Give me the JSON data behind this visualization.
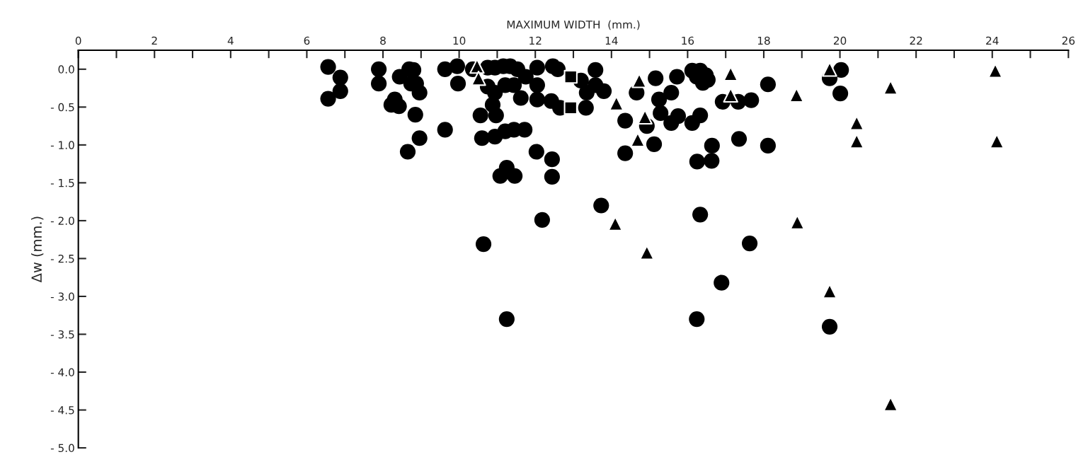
{
  "chart_data": {
    "type": "scatter",
    "xlabel": "MAXIMUM WIDTH  (mm.)",
    "ylabel": "Δw (mm.)",
    "xlim": [
      0,
      26
    ],
    "ylim": [
      -5.0,
      0.25
    ],
    "xticks": [
      0,
      {
        "value": 1,
        "label": null
      },
      2,
      {
        "value": 3,
        "label": null
      },
      4,
      {
        "value": 5,
        "label": null
      },
      6,
      {
        "value": 7,
        "label": null
      },
      8,
      {
        "value": 9,
        "label": null
      },
      10,
      {
        "value": 11,
        "label": null
      },
      12,
      {
        "value": 13,
        "label": null
      },
      14,
      {
        "value": 15,
        "label": null
      },
      16,
      {
        "value": 17,
        "label": null
      },
      18,
      {
        "value": 19,
        "label": null
      },
      20,
      {
        "value": 21,
        "label": null
      },
      22,
      {
        "value": 23,
        "label": null
      },
      24,
      {
        "value": 25,
        "label": null
      },
      26
    ],
    "yticks": [
      {
        "value": 0,
        "label": "0.0"
      },
      {
        "value": -0.5,
        "label": "- 0.5"
      },
      {
        "value": -1.0,
        "label": "- 1.0"
      },
      {
        "value": -1.5,
        "label": "- 1.5"
      },
      {
        "value": -2.0,
        "label": "- 2.0"
      },
      {
        "value": -2.5,
        "label": "- 2.5"
      },
      {
        "value": -3.0,
        "label": "- 3.0"
      },
      {
        "value": -3.5,
        "label": "- 3.5"
      },
      {
        "value": -4.0,
        "label": "- 4.0"
      },
      {
        "value": -4.5,
        "label": "- 4.5"
      },
      {
        "value": -5.0,
        "label": "- 5.0"
      }
    ],
    "grid": false,
    "series": [
      {
        "color": "#000000",
        "marker": "circle",
        "x": [
          6.56,
          6.88,
          6.88,
          6.56,
          7.89,
          7.89,
          8.44,
          8.69,
          8.8,
          8.74,
          8.87,
          8.96,
          8.31,
          8.22,
          8.42,
          8.85,
          8.96,
          8.65,
          9.63,
          9.95,
          9.97,
          9.63,
          10.36,
          10.75,
          10.94,
          11.16,
          11.34,
          11.53,
          11.75,
          10.75,
          10.94,
          11.21,
          11.44,
          10.88,
          10.97,
          10.56,
          10.6,
          10.94,
          11.21,
          11.44,
          11.72,
          11.62,
          12.05,
          12.46,
          12.59,
          12.05,
          12.05,
          12.42,
          12.65,
          13.33,
          13.58,
          13.2,
          13.58,
          13.35,
          13.8,
          12.03,
          12.44,
          11.25,
          11.08,
          11.46,
          12.44,
          14.36,
          14.36,
          15.16,
          15.72,
          14.66,
          15.25,
          15.57,
          14.93,
          15.29,
          15.57,
          15.12,
          16.12,
          16.33,
          16.48,
          16.24,
          16.4,
          16.53,
          18.11,
          16.92,
          17.33,
          17.67,
          20.03,
          19.73,
          20.01,
          15.75,
          16.33,
          16.12,
          17.35,
          18.11,
          16.64,
          16.25,
          16.63,
          13.73,
          12.18,
          10.64,
          11.25,
          16.33,
          16.24,
          17.63,
          16.89,
          19.73
        ],
        "values": [
          0.03,
          -0.11,
          -0.29,
          -0.39,
          0.0,
          -0.19,
          -0.1,
          0.0,
          -0.01,
          -0.19,
          -0.19,
          -0.31,
          -0.4,
          -0.47,
          -0.49,
          -0.6,
          -0.91,
          -1.09,
          0.0,
          0.04,
          -0.19,
          -0.8,
          0.0,
          0.02,
          0.02,
          0.04,
          0.04,
          0.0,
          -0.1,
          -0.23,
          -0.31,
          -0.21,
          -0.21,
          -0.47,
          -0.61,
          -0.61,
          -0.91,
          -0.89,
          -0.82,
          -0.8,
          -0.8,
          -0.38,
          0.02,
          0.04,
          0.0,
          -0.21,
          -0.4,
          -0.42,
          -0.51,
          -0.51,
          -0.01,
          -0.15,
          -0.21,
          -0.31,
          -0.29,
          -1.09,
          -1.19,
          -1.3,
          -1.41,
          -1.41,
          -1.42,
          -0.68,
          -1.11,
          -0.12,
          -0.1,
          -0.31,
          -0.4,
          -0.31,
          -0.75,
          -0.58,
          -0.71,
          -0.99,
          -0.02,
          -0.02,
          -0.08,
          -0.1,
          -0.18,
          -0.14,
          -0.2,
          -0.43,
          -0.43,
          -0.41,
          -0.01,
          -0.12,
          -0.32,
          -0.62,
          -0.61,
          -0.71,
          -0.92,
          -1.01,
          -1.01,
          -1.22,
          -1.21,
          -1.8,
          -1.99,
          -2.31,
          -3.3,
          -1.92,
          -3.3,
          -2.3,
          -2.82,
          -3.4
        ]
      },
      {
        "color": "#000000",
        "marker": "triangle",
        "x": [
          10.47,
          10.51,
          14.13,
          14.73,
          14.88,
          14.69,
          17.13,
          17.13,
          18.86,
          19.73,
          21.33,
          24.08,
          20.44,
          20.44,
          24.12,
          14.1,
          14.93,
          18.88,
          19.73,
          21.33
        ],
        "values": [
          0.04,
          -0.12,
          -0.45,
          -0.15,
          -0.63,
          -0.93,
          -0.06,
          -0.34,
          -0.34,
          0.0,
          -0.24,
          -0.02,
          -0.71,
          -0.95,
          -0.95,
          -2.04,
          -2.42,
          -2.02,
          -2.93,
          -4.42
        ]
      },
      {
        "color": "#000000",
        "marker": "square",
        "x": [
          12.93,
          12.93
        ],
        "values": [
          -0.1,
          -0.51
        ]
      }
    ]
  }
}
